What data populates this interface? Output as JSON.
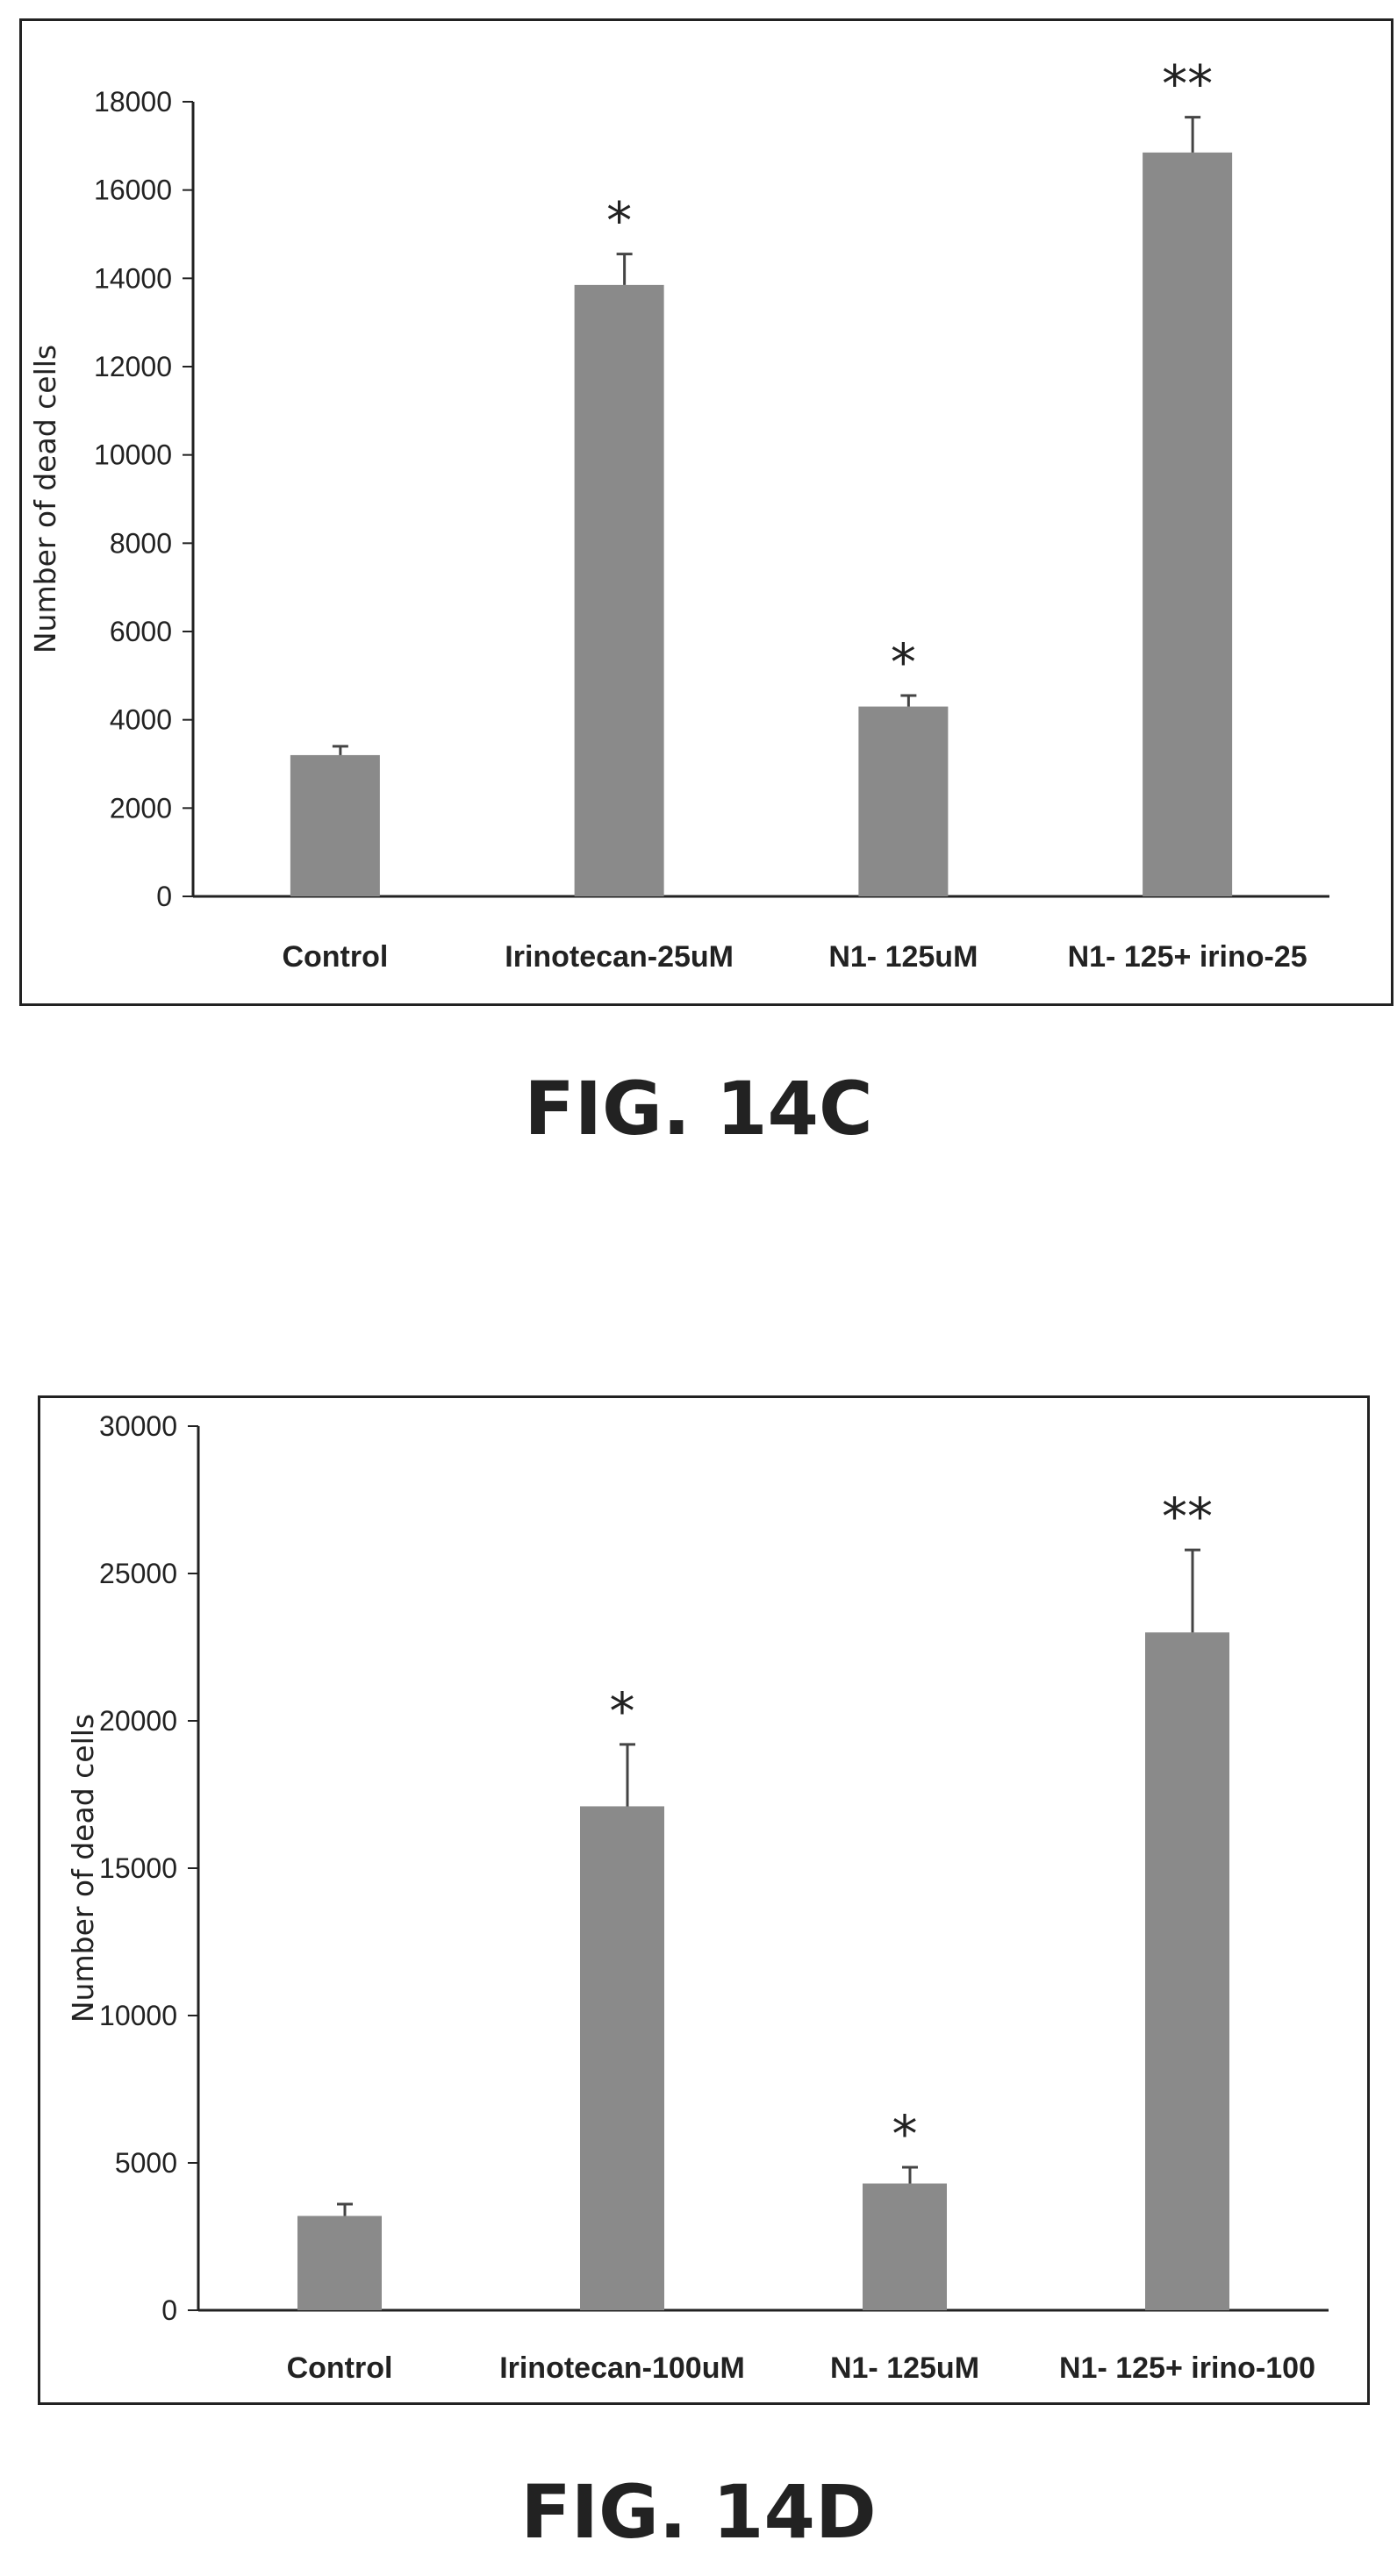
{
  "chart_data": [
    {
      "type": "bar",
      "caption": "FIG. 14C",
      "categories": [
        "Control",
        "Irinotecan-25uM",
        "N1- 125uM",
        "N1- 125+ irino-25"
      ],
      "values": [
        3200,
        13850,
        4300,
        16850
      ],
      "errors": [
        200,
        700,
        250,
        800
      ],
      "annotations": [
        "",
        "*",
        "*",
        "**"
      ],
      "ylabel": "Number of dead cells",
      "ylim": [
        0,
        18000
      ],
      "yticks": [
        0,
        2000,
        4000,
        6000,
        8000,
        10000,
        12000,
        14000,
        16000,
        18000
      ],
      "grid": false,
      "bar_color": "#8a8a8a"
    },
    {
      "type": "bar",
      "caption": "FIG. 14D",
      "categories": [
        "Control",
        "Irinotecan-100uM",
        "N1- 125uM",
        "N1- 125+ irino-100"
      ],
      "values": [
        3200,
        17100,
        4300,
        23000
      ],
      "errors": [
        400,
        2100,
        550,
        2800
      ],
      "annotations": [
        "",
        "*",
        "*",
        "**"
      ],
      "ylabel": "Number of dead cells",
      "ylim": [
        0,
        30000
      ],
      "yticks": [
        0,
        5000,
        10000,
        15000,
        20000,
        25000,
        30000
      ],
      "grid": false,
      "bar_color": "#8a8a8a"
    }
  ]
}
